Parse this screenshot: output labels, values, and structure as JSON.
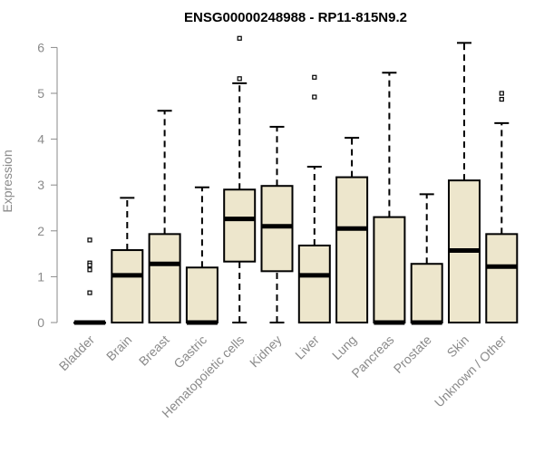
{
  "chart_data": {
    "type": "boxplot",
    "title": "ENSG00000248988 - RP11-815N9.2",
    "xlabel": "",
    "ylabel": "Expression",
    "ylim": [
      0,
      6.2
    ],
    "y_ticks": [
      0,
      1,
      2,
      3,
      4,
      5,
      6
    ],
    "grid": false,
    "box_fill": "#ede6cc",
    "box_stroke": "#000000",
    "axis_color": "#8a8a8a",
    "categories": [
      "Bladder",
      "Brain",
      "Breast",
      "Gastric",
      "Hematopoietic cells",
      "Kidney",
      "Liver",
      "Lung",
      "Pancreas",
      "Prostate",
      "Skin",
      "Unknown / Other"
    ],
    "boxes": [
      {
        "q1": 0,
        "median": 0,
        "q3": 0,
        "whisker_low": 0,
        "whisker_high": 0,
        "outliers": [
          1.8,
          1.3,
          1.25,
          1.15,
          0.65
        ]
      },
      {
        "q1": 0,
        "median": 1.03,
        "q3": 1.58,
        "whisker_low": 0,
        "whisker_high": 2.72,
        "outliers": []
      },
      {
        "q1": 0,
        "median": 1.28,
        "q3": 1.93,
        "whisker_low": 0,
        "whisker_high": 4.62,
        "outliers": []
      },
      {
        "q1": 0,
        "median": 0,
        "q3": 1.2,
        "whisker_low": 0,
        "whisker_high": 2.95,
        "outliers": []
      },
      {
        "q1": 1.33,
        "median": 2.26,
        "q3": 2.9,
        "whisker_low": 0,
        "whisker_high": 5.22,
        "outliers": [
          6.2,
          5.32
        ]
      },
      {
        "q1": 1.12,
        "median": 2.1,
        "q3": 2.98,
        "whisker_low": 0,
        "whisker_high": 4.27,
        "outliers": []
      },
      {
        "q1": 0,
        "median": 1.03,
        "q3": 1.68,
        "whisker_low": 0,
        "whisker_high": 3.4,
        "outliers": [
          5.35,
          4.92
        ]
      },
      {
        "q1": 0,
        "median": 2.05,
        "q3": 3.17,
        "whisker_low": 0,
        "whisker_high": 4.03,
        "outliers": []
      },
      {
        "q1": 0,
        "median": 0,
        "q3": 2.3,
        "whisker_low": 0,
        "whisker_high": 5.45,
        "outliers": []
      },
      {
        "q1": 0,
        "median": 0,
        "q3": 1.28,
        "whisker_low": 0,
        "whisker_high": 2.8,
        "outliers": []
      },
      {
        "q1": 0,
        "median": 1.57,
        "q3": 3.1,
        "whisker_low": 0,
        "whisker_high": 6.1,
        "outliers": []
      },
      {
        "q1": 0,
        "median": 1.22,
        "q3": 1.93,
        "whisker_low": 0,
        "whisker_high": 4.35,
        "outliers": [
          5.0,
          4.87
        ]
      }
    ]
  }
}
